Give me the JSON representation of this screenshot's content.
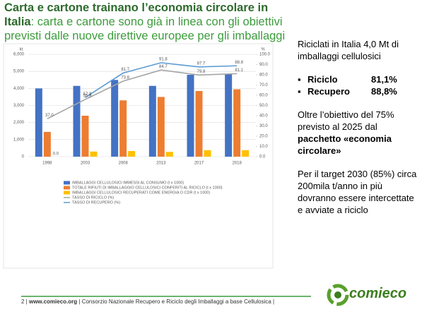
{
  "header": {
    "title_bold": "Carta e cartone trainano l’economia circolare in Italia",
    "title_rest": ": carta e cartone sono già in linea con gli obiettivi previsti dalle nuove direttive europee per gli imballaggi"
  },
  "chart_data": {
    "type": "bar_line",
    "ylabel": "kt",
    "y2label": "%",
    "categories": [
      "1998",
      "2003",
      "2008",
      "2013",
      "2017",
      "2018"
    ],
    "ylim": [
      0,
      6000
    ],
    "yticks": [
      0,
      {
        "value": 1000,
        "label": "1,000"
      },
      {
        "value": 2000,
        "label": "2,000"
      },
      {
        "value": 3000,
        "label": "3,000"
      },
      {
        "value": 4000,
        "label": "4,000"
      },
      {
        "value": 5000,
        "label": "5,000"
      },
      {
        "value": 6000,
        "label": "6,000"
      }
    ],
    "y2lim": [
      0,
      100
    ],
    "y2ticks": [
      {
        "value": 0,
        "label": "0.0"
      },
      {
        "value": 10,
        "label": "10.0"
      },
      {
        "value": 20,
        "label": "20.0"
      },
      {
        "value": 30,
        "label": "30.0"
      },
      {
        "value": 40,
        "label": "40.0"
      },
      {
        "value": 50,
        "label": "50.0"
      },
      {
        "value": 60,
        "label": "60.0"
      },
      {
        "value": 70,
        "label": "70.0"
      },
      {
        "value": 80,
        "label": "80.0"
      },
      {
        "value": 90,
        "label": "90.0"
      },
      {
        "value": 100,
        "label": "100.0"
      }
    ],
    "grid": true,
    "series": [
      {
        "name": "IMBALLAGGI CELLULOSICI IMMESSI AL CONSUMO (t x 1000)",
        "color": "#4472c4",
        "kind": "bar",
        "values": [
          4000,
          4150,
          4500,
          4150,
          4800,
          4850
        ]
      },
      {
        "name": "TOTALE RIFIUTI DI IMBALLAGGIO CELLULOSICI CONFERITI AL RICICLO (t x 1000)",
        "color": "#ed7d31",
        "kind": "bar",
        "values": [
          1450,
          2400,
          3300,
          3500,
          3850,
          3950
        ]
      },
      {
        "name": "IMBALLAGGI CELLULOSICI RECUPERATI COME ENERGIA O CDR (t x 1000)",
        "color": "#ffc000",
        "kind": "bar",
        "values": [
          0,
          300,
          330,
          280,
          380,
          380
        ],
        "value_labels": [
          "0.0",
          null,
          null,
          null,
          null,
          null
        ]
      },
      {
        "name": "TASSO DI RICICLO (%)",
        "color": "#a5a5a5",
        "kind": "line",
        "axis": "y2",
        "values": [
          37.0,
          55.9,
          73.8,
          84.7,
          79.8,
          81.1
        ],
        "value_labels": [
          "37.0",
          "55.9",
          "73.8",
          "84.7",
          "79.8",
          "81.1"
        ]
      },
      {
        "name": "TASSO DI RECUPERO (%)",
        "color": "#5b9bd5",
        "kind": "line",
        "axis": "y2",
        "values": [
          null,
          57.8,
          81.7,
          91.8,
          87.7,
          88.8
        ],
        "value_labels": [
          null,
          "57.8",
          "81.7",
          "91.8",
          "87.7",
          "88.8"
        ]
      }
    ]
  },
  "panel": {
    "intro": "Riciclati in Italia 4,0 Mt di imballaggi cellulosici",
    "bullets": [
      {
        "label": "Riciclo",
        "value": "81,1%"
      },
      {
        "label": "Recupero",
        "value": "88,8%"
      }
    ],
    "goal": {
      "text": "Oltre l’obiettivo del 75% previsto al 2025 dal ",
      "bold": "pacchetto «economia circolare»"
    },
    "target": "Per il target 2030 (85%) circa 200mila t/anno in più dovranno essere intercettate e avviate a riciclo"
  },
  "footer": {
    "page": "2",
    "url": "www.comieco.org",
    "org": "Consorzio Nazionale Recupero e Riciclo degli Imballaggi a base Cellulosica",
    "logo": "comieco"
  }
}
